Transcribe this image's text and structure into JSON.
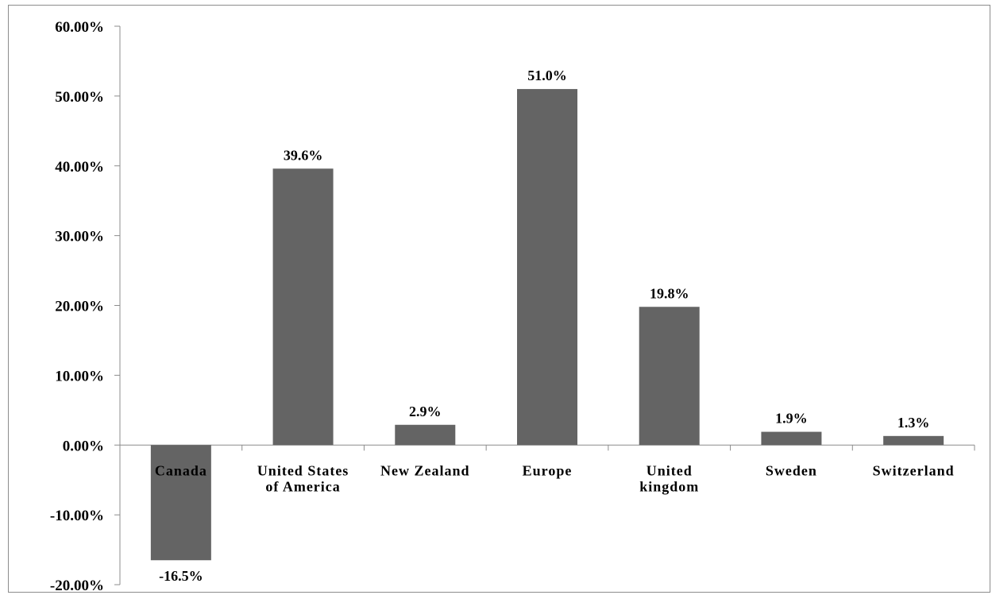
{
  "chart_data": {
    "type": "bar",
    "categories": [
      [
        "Canada"
      ],
      [
        "United States",
        "of America"
      ],
      [
        "New Zealand"
      ],
      [
        "Europe"
      ],
      [
        "United",
        "kingdom"
      ],
      [
        "Sweden"
      ],
      [
        "Switzerland"
      ]
    ],
    "values": [
      -16.5,
      39.6,
      2.9,
      51.0,
      19.8,
      1.9,
      1.3
    ],
    "data_labels": [
      "-16.5%",
      "39.6%",
      "2.9%",
      "51.0%",
      "19.8%",
      "1.9%",
      "1.3%"
    ],
    "y_ticks": [
      60,
      50,
      40,
      30,
      20,
      10,
      0,
      -10,
      -20
    ],
    "y_tick_labels": [
      "60.00%",
      "50.00%",
      "40.00%",
      "30.00%",
      "20.00%",
      "10.00%",
      "0.00%",
      "-10.00%",
      "-20.00%"
    ],
    "ylim": [
      -20,
      60
    ],
    "title": "",
    "xlabel": "",
    "ylabel": "",
    "grid": false,
    "legend": false,
    "colors": {
      "bar": "#646464",
      "axis": "#8c8c8c",
      "text": "#000000"
    }
  }
}
